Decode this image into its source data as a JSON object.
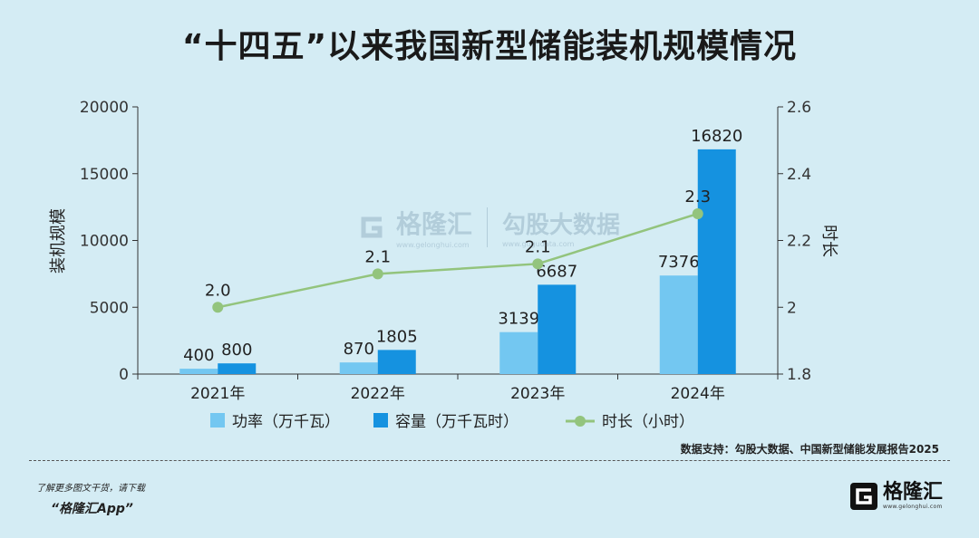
{
  "chart_data": {
    "type": "bar",
    "title": "“十四五”以来我国新型储能装机规模情况",
    "categories": [
      "2021年",
      "2022年",
      "2023年",
      "2024年"
    ],
    "series": [
      {
        "name": "功率（万千瓦）",
        "type": "bar",
        "axis": "left",
        "color": "#73c7f1",
        "values": [
          400,
          870,
          3139,
          7376
        ],
        "labels": [
          "400",
          "870",
          "3139",
          "7376"
        ]
      },
      {
        "name": "容量（万千瓦时）",
        "type": "bar",
        "axis": "left",
        "color": "#1592e0",
        "values": [
          800,
          1805,
          6687,
          16820
        ],
        "labels": [
          "800",
          "1805",
          "6687",
          "16820"
        ]
      },
      {
        "name": "时长（小时）",
        "type": "line",
        "axis": "right",
        "color": "#93c47d",
        "values": [
          2.0,
          2.1,
          2.13,
          2.28
        ],
        "labels": [
          "2.0",
          "2.1",
          "2.1",
          "2.3"
        ]
      }
    ],
    "ylabel": "装机规模",
    "ylabel_right": "时长",
    "ylim": [
      0,
      20000
    ],
    "yticks": [
      "0",
      "5000",
      "10000",
      "15000",
      "20000"
    ],
    "ylim_right": [
      1.8,
      2.6
    ],
    "yticks_right": [
      "1.8",
      "2",
      "2.2",
      "2.4",
      "2.6"
    ],
    "grid": false,
    "legend_position": "bottom"
  },
  "source_note": "数据支持：勾股大数据、中国新型储能发展报告2025",
  "promo": {
    "line1": "了解更多图文干货，请下载",
    "line2": "“格隆汇App”"
  },
  "brand": {
    "name": "格隆汇",
    "domain": "www.gelonghui.com"
  },
  "watermark": {
    "name": "格隆汇",
    "domain": "www.gelonghui.com",
    "name2": "勾股大数据",
    "domain2": "www.gugudata.com"
  }
}
